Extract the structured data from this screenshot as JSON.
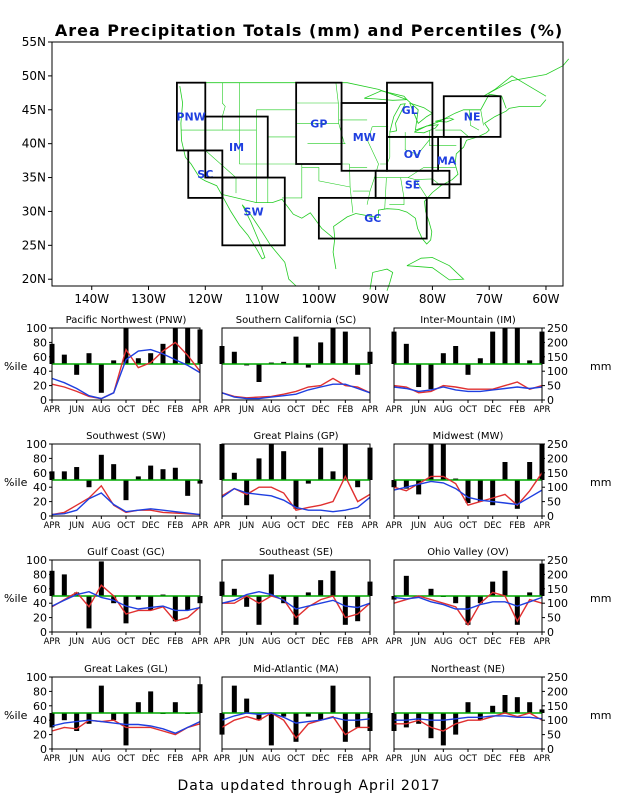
{
  "title": "Area Precipitation Totals (mm) and Percentiles (%)",
  "footer": "Data updated through April 2017",
  "colors": {
    "bar": "#000000",
    "percentile_line": "#e03030",
    "total_line": "#1f3fe0",
    "median_line": "#00aa00",
    "map_lines": "#22cc22",
    "region_box": "#000000",
    "region_label": "#1f3fe0"
  },
  "map": {
    "lat_ticks": [
      "55N",
      "50N",
      "45N",
      "40N",
      "35N",
      "30N",
      "25N",
      "20N"
    ],
    "lon_ticks": [
      "140W",
      "130W",
      "120W",
      "110W",
      "100W",
      "90W",
      "80W",
      "70W",
      "60W"
    ],
    "regions": [
      {
        "code": "PNW",
        "lon": [
          -125,
          -120
        ],
        "lat": [
          39,
          49
        ]
      },
      {
        "code": "SC",
        "lon": [
          -123,
          -117
        ],
        "lat": [
          32,
          39
        ]
      },
      {
        "code": "IM",
        "lon": [
          -120,
          -109
        ],
        "lat": [
          35,
          44
        ]
      },
      {
        "code": "SW",
        "lon": [
          -117,
          -106
        ],
        "lat": [
          25,
          35
        ]
      },
      {
        "code": "GP",
        "lon": [
          -104,
          -96
        ],
        "lat": [
          37,
          49
        ]
      },
      {
        "code": "MW",
        "lon": [
          -96,
          -88
        ],
        "lat": [
          36,
          46
        ]
      },
      {
        "code": "GL",
        "lon": [
          -88,
          -80
        ],
        "lat": [
          41,
          49
        ]
      },
      {
        "code": "OV",
        "lon": [
          -88,
          -79
        ],
        "lat": [
          36,
          41
        ]
      },
      {
        "code": "SE",
        "lon": [
          -90,
          -77
        ],
        "lat": [
          32,
          36
        ]
      },
      {
        "code": "GC",
        "lon": [
          -100,
          -81
        ],
        "lat": [
          26,
          32
        ]
      },
      {
        "code": "MA",
        "lon": [
          -80,
          -75
        ],
        "lat": [
          34,
          41
        ]
      },
      {
        "code": "NE",
        "lon": [
          -78,
          -68
        ],
        "lat": [
          41,
          47
        ]
      }
    ]
  },
  "axis": {
    "left_label": "%ile",
    "right_label": "mm",
    "left_ticks": [
      "0",
      "20",
      "40",
      "60",
      "80",
      "100"
    ],
    "right_ticks": [
      "0",
      "50",
      "100",
      "150",
      "200",
      "250"
    ],
    "x_ticks": [
      "APR",
      "JUN",
      "AUG",
      "OCT",
      "DEC",
      "FEB",
      "APR"
    ]
  },
  "chart_data": [
    {
      "type": "bar",
      "title": "Pacific Northwest (PNW)",
      "months": [
        "APR",
        "MAY",
        "JUN",
        "JUL",
        "AUG",
        "SEP",
        "OCT",
        "NOV",
        "DEC",
        "JAN",
        "FEB",
        "MAR",
        "APR"
      ],
      "ylim": [
        0,
        100
      ],
      "y2lim": [
        0,
        250
      ],
      "percentile_bars": [
        78,
        63,
        35,
        65,
        10,
        55,
        100,
        58,
        65,
        78,
        100,
        100,
        98
      ],
      "percentile_line": [
        22,
        18,
        12,
        5,
        2,
        10,
        70,
        45,
        52,
        68,
        80,
        62,
        40
      ],
      "total_mm": [
        75,
        60,
        40,
        15,
        5,
        25,
        140,
        170,
        175,
        160,
        140,
        120,
        95
      ]
    },
    {
      "type": "bar",
      "title": "Southern California (SC)",
      "months": [
        "APR",
        "MAY",
        "JUN",
        "JUL",
        "AUG",
        "SEP",
        "OCT",
        "NOV",
        "DEC",
        "JAN",
        "FEB",
        "MAR",
        "APR"
      ],
      "ylim": [
        0,
        100
      ],
      "y2lim": [
        0,
        250
      ],
      "percentile_bars": [
        75,
        67,
        48,
        25,
        52,
        53,
        88,
        45,
        80,
        100,
        95,
        35,
        67
      ],
      "percentile_line": [
        10,
        5,
        3,
        4,
        5,
        8,
        12,
        18,
        20,
        30,
        20,
        18,
        10
      ],
      "total_mm": [
        25,
        10,
        5,
        5,
        10,
        15,
        20,
        35,
        45,
        55,
        55,
        40,
        25
      ]
    },
    {
      "type": "bar",
      "title": "Inter-Mountain (IM)",
      "months": [
        "APR",
        "MAY",
        "JUN",
        "JUL",
        "AUG",
        "SEP",
        "OCT",
        "NOV",
        "DEC",
        "JAN",
        "FEB",
        "MAR",
        "APR"
      ],
      "ylim": [
        0,
        100
      ],
      "y2lim": [
        0,
        250
      ],
      "percentile_bars": [
        95,
        78,
        18,
        15,
        65,
        75,
        35,
        58,
        95,
        100,
        100,
        55,
        95
      ],
      "percentile_line": [
        20,
        18,
        10,
        12,
        20,
        18,
        15,
        15,
        15,
        20,
        25,
        15,
        20
      ],
      "total_mm": [
        45,
        40,
        30,
        35,
        45,
        35,
        30,
        30,
        35,
        40,
        45,
        40,
        45
      ]
    },
    {
      "type": "bar",
      "title": "Southwest (SW)",
      "months": [
        "APR",
        "MAY",
        "JUN",
        "JUL",
        "AUG",
        "SEP",
        "OCT",
        "NOV",
        "DEC",
        "JAN",
        "FEB",
        "MAR",
        "APR"
      ],
      "ylim": [
        0,
        100
      ],
      "y2lim": [
        0,
        250
      ],
      "percentile_bars": [
        62,
        62,
        68,
        40,
        85,
        72,
        22,
        55,
        70,
        65,
        67,
        28,
        45
      ],
      "percentile_line": [
        2,
        5,
        15,
        25,
        42,
        15,
        5,
        8,
        8,
        5,
        4,
        3,
        2
      ],
      "total_mm": [
        5,
        8,
        20,
        60,
        80,
        40,
        15,
        20,
        25,
        20,
        15,
        10,
        5
      ]
    },
    {
      "type": "bar",
      "title": "Great Plains (GP)",
      "months": [
        "APR",
        "MAY",
        "JUN",
        "JUL",
        "AUG",
        "SEP",
        "OCT",
        "NOV",
        "DEC",
        "JAN",
        "FEB",
        "MAR",
        "APR"
      ],
      "ylim": [
        0,
        100
      ],
      "y2lim": [
        0,
        250
      ],
      "percentile_bars": [
        100,
        60,
        15,
        80,
        100,
        90,
        10,
        45,
        95,
        62,
        100,
        40,
        95
      ],
      "percentile_line": [
        28,
        38,
        30,
        40,
        40,
        32,
        8,
        12,
        15,
        20,
        55,
        20,
        30
      ],
      "total_mm": [
        65,
        95,
        80,
        75,
        70,
        55,
        30,
        20,
        20,
        15,
        20,
        30,
        65
      ]
    },
    {
      "type": "bar",
      "title": "Midwest (MW)",
      "months": [
        "APR",
        "MAY",
        "JUN",
        "JUL",
        "AUG",
        "SEP",
        "OCT",
        "NOV",
        "DEC",
        "JAN",
        "FEB",
        "MAR",
        "APR"
      ],
      "ylim": [
        0,
        100
      ],
      "y2lim": [
        0,
        250
      ],
      "percentile_bars": [
        40,
        38,
        30,
        100,
        100,
        52,
        18,
        20,
        15,
        75,
        10,
        75,
        100
      ],
      "percentile_line": [
        40,
        35,
        45,
        55,
        55,
        45,
        15,
        20,
        25,
        30,
        15,
        35,
        60
      ],
      "total_mm": [
        90,
        100,
        110,
        120,
        115,
        95,
        65,
        55,
        50,
        45,
        40,
        65,
        90
      ]
    },
    {
      "type": "bar",
      "title": "Gulf Coast (GC)",
      "months": [
        "APR",
        "MAY",
        "JUN",
        "JUL",
        "AUG",
        "SEP",
        "OCT",
        "NOV",
        "DEC",
        "JAN",
        "FEB",
        "MAR",
        "APR"
      ],
      "ylim": [
        0,
        100
      ],
      "y2lim": [
        0,
        250
      ],
      "percentile_bars": [
        85,
        80,
        55,
        5,
        98,
        40,
        12,
        45,
        30,
        52,
        15,
        30,
        40
      ],
      "percentile_line": [
        35,
        45,
        55,
        35,
        65,
        50,
        25,
        30,
        30,
        35,
        15,
        20,
        35
      ],
      "total_mm": [
        90,
        110,
        130,
        140,
        120,
        110,
        90,
        80,
        85,
        90,
        75,
        75,
        85
      ]
    },
    {
      "type": "bar",
      "title": "Southeast (SE)",
      "months": [
        "APR",
        "MAY",
        "JUN",
        "JUL",
        "AUG",
        "SEP",
        "OCT",
        "NOV",
        "DEC",
        "JAN",
        "FEB",
        "MAR",
        "APR"
      ],
      "ylim": [
        0,
        100
      ],
      "y2lim": [
        0,
        250
      ],
      "percentile_bars": [
        70,
        60,
        35,
        10,
        80,
        40,
        10,
        55,
        72,
        85,
        10,
        15,
        70
      ],
      "percentile_line": [
        40,
        40,
        50,
        40,
        50,
        45,
        20,
        35,
        45,
        50,
        20,
        25,
        40
      ],
      "total_mm": [
        100,
        110,
        130,
        140,
        130,
        110,
        80,
        90,
        100,
        110,
        90,
        85,
        100
      ]
    },
    {
      "type": "bar",
      "title": "Ohio Valley (OV)",
      "months": [
        "APR",
        "MAY",
        "JUN",
        "JUL",
        "AUG",
        "SEP",
        "OCT",
        "NOV",
        "DEC",
        "JAN",
        "FEB",
        "MAR",
        "APR"
      ],
      "ylim": [
        0,
        100
      ],
      "y2lim": [
        0,
        250
      ],
      "percentile_bars": [
        45,
        78,
        50,
        60,
        50,
        40,
        10,
        40,
        70,
        85,
        10,
        55,
        95
      ],
      "percentile_line": [
        40,
        45,
        50,
        45,
        40,
        35,
        10,
        40,
        55,
        50,
        15,
        45,
        40
      ],
      "total_mm": [
        120,
        115,
        120,
        105,
        95,
        80,
        80,
        95,
        105,
        105,
        90,
        105,
        120
      ]
    },
    {
      "type": "bar",
      "title": "Great Lakes (GL)",
      "months": [
        "APR",
        "MAY",
        "JUN",
        "JUL",
        "AUG",
        "SEP",
        "OCT",
        "NOV",
        "DEC",
        "JAN",
        "FEB",
        "MAR",
        "APR"
      ],
      "ylim": [
        0,
        100
      ],
      "y2lim": [
        0,
        250
      ],
      "percentile_bars": [
        30,
        40,
        25,
        35,
        88,
        40,
        5,
        65,
        80,
        50,
        65,
        50,
        90
      ],
      "percentile_line": [
        25,
        30,
        28,
        40,
        38,
        40,
        30,
        30,
        30,
        25,
        20,
        30,
        35
      ],
      "total_mm": [
        80,
        90,
        95,
        100,
        95,
        90,
        85,
        85,
        80,
        70,
        55,
        75,
        95
      ]
    },
    {
      "type": "bar",
      "title": "Mid-Atlantic (MA)",
      "months": [
        "APR",
        "MAY",
        "JUN",
        "JUL",
        "AUG",
        "SEP",
        "OCT",
        "NOV",
        "DEC",
        "JAN",
        "FEB",
        "MAR",
        "APR"
      ],
      "ylim": [
        0,
        100
      ],
      "y2lim": [
        0,
        250
      ],
      "percentile_bars": [
        20,
        88,
        70,
        40,
        5,
        45,
        10,
        45,
        40,
        88,
        10,
        30,
        25
      ],
      "percentile_line": [
        30,
        40,
        45,
        40,
        50,
        40,
        15,
        35,
        40,
        45,
        20,
        30,
        30
      ],
      "total_mm": [
        100,
        115,
        125,
        120,
        125,
        110,
        90,
        95,
        100,
        110,
        100,
        100,
        105
      ]
    },
    {
      "type": "bar",
      "title": "Northeast (NE)",
      "months": [
        "APR",
        "MAY",
        "JUN",
        "JUL",
        "AUG",
        "SEP",
        "OCT",
        "NOV",
        "DEC",
        "JAN",
        "FEB",
        "MAR",
        "APR"
      ],
      "ylim": [
        0,
        100
      ],
      "y2lim": [
        0,
        250
      ],
      "percentile_bars": [
        25,
        30,
        35,
        15,
        5,
        20,
        65,
        40,
        60,
        75,
        72,
        65,
        55
      ],
      "percentile_line": [
        35,
        35,
        40,
        30,
        25,
        35,
        40,
        40,
        45,
        50,
        45,
        50,
        40
      ],
      "total_mm": [
        100,
        100,
        105,
        100,
        100,
        105,
        110,
        110,
        115,
        115,
        110,
        110,
        105
      ]
    }
  ]
}
